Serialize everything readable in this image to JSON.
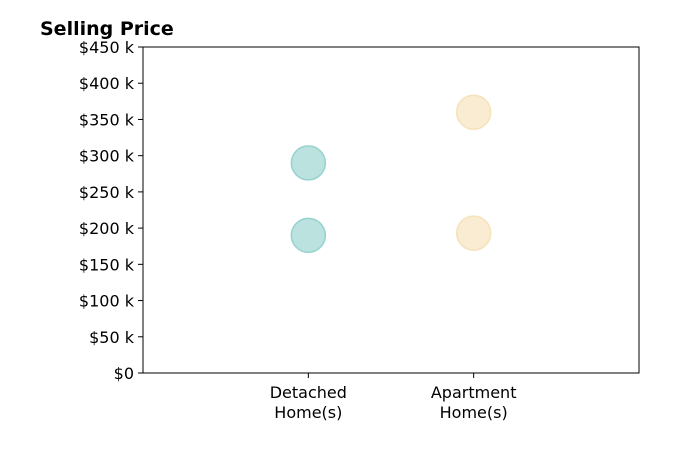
{
  "chart_data": {
    "type": "scatter",
    "title": "Selling Price",
    "xlabel": "",
    "ylabel": "",
    "categories": [
      "Detached\nHome(s)",
      "Apartment\nHome(s)"
    ],
    "y_ticks": [
      "$0",
      "$50 k",
      "$100 k",
      "$150 k",
      "$200 k",
      "$250 k",
      "$300 k",
      "$350 k",
      "$400 k",
      "$450 k"
    ],
    "ylim": [
      0,
      450000
    ],
    "xlim": [
      0,
      3
    ],
    "grid": false,
    "series": [
      {
        "category_index": 0,
        "values": [
          190000,
          290000
        ],
        "color": "#8ecfca"
      },
      {
        "category_index": 1,
        "values": [
          193000,
          360000
        ],
        "color": "#f5e0b5"
      }
    ]
  }
}
